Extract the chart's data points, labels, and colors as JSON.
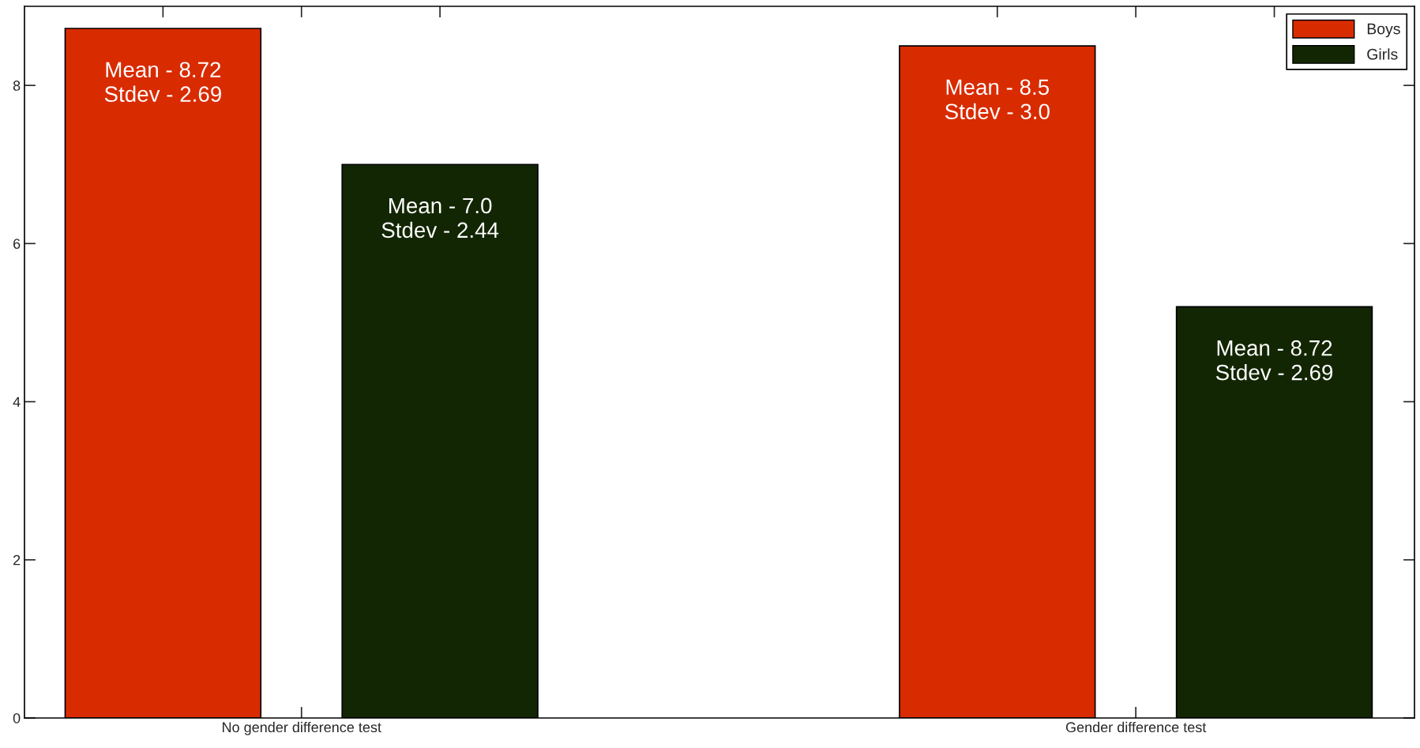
{
  "chart_data": {
    "type": "bar",
    "categories": [
      "No gender difference test",
      "Gender difference test"
    ],
    "series": [
      {
        "name": "Boys",
        "color": "#d92b00",
        "values": [
          8.72,
          8.5
        ],
        "value_labels": [
          "Mean - 8.72\nStdev - 2.69",
          "Mean - 8.5\nStdev - 3.0"
        ]
      },
      {
        "name": "Girls",
        "color": "#132603",
        "values": [
          7.0,
          5.2
        ],
        "value_labels": [
          "Mean - 7.0\nStdev - 2.44",
          "Mean - 8.72\nStdev - 2.69"
        ]
      }
    ],
    "ylim": [
      0,
      9
    ],
    "yticks": [
      0,
      2,
      4,
      6,
      8
    ],
    "grid": false,
    "legend": "top right"
  }
}
